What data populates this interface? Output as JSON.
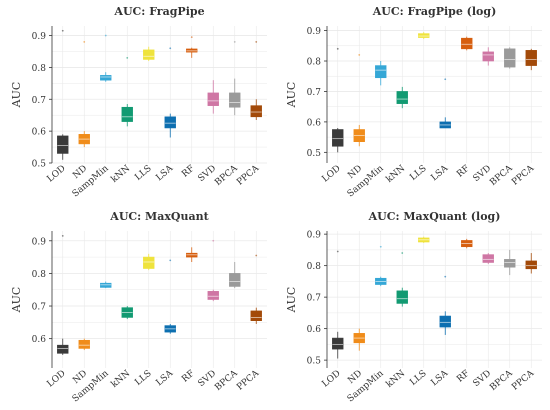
{
  "chart_data": [
    {
      "type": "box",
      "title": "AUC: FragPipe",
      "ylabel": "AUC",
      "xlabel": "",
      "ylim": [
        0.5,
        0.93
      ],
      "yticks": [
        0.5,
        0.6,
        0.7,
        0.8,
        0.9
      ],
      "grid": true,
      "categories": [
        "LOD",
        "ND",
        "SampMin",
        "kNN",
        "LLS",
        "LSA",
        "RF",
        "SVD",
        "BPCA",
        "PPCA"
      ],
      "boxes": [
        {
          "category": "LOD",
          "whisker_low": 0.51,
          "q1": 0.53,
          "median": 0.555,
          "q3": 0.585,
          "whisker_high": 0.59,
          "outliers": [
            0.915
          ]
        },
        {
          "category": "ND",
          "whisker_low": 0.55,
          "q1": 0.56,
          "median": 0.575,
          "q3": 0.59,
          "whisker_high": 0.6,
          "outliers": [
            0.88
          ]
        },
        {
          "category": "SampMin",
          "whisker_low": 0.755,
          "q1": 0.76,
          "median": 0.77,
          "q3": 0.775,
          "whisker_high": 0.785,
          "outliers": [
            0.9
          ]
        },
        {
          "category": "kNN",
          "whisker_low": 0.615,
          "q1": 0.63,
          "median": 0.645,
          "q3": 0.675,
          "whisker_high": 0.685,
          "outliers": [
            0.83
          ]
        },
        {
          "category": "LLS",
          "whisker_low": 0.82,
          "q1": 0.825,
          "median": 0.835,
          "q3": 0.855,
          "whisker_high": 0.865,
          "outliers": []
        },
        {
          "category": "LSA",
          "whisker_low": 0.58,
          "q1": 0.61,
          "median": 0.625,
          "q3": 0.645,
          "whisker_high": 0.655,
          "outliers": [
            0.86
          ]
        },
        {
          "category": "RF",
          "whisker_low": 0.83,
          "q1": 0.848,
          "median": 0.852,
          "q3": 0.858,
          "whisker_high": 0.862,
          "outliers": [
            0.895
          ]
        },
        {
          "category": "SVD",
          "whisker_low": 0.655,
          "q1": 0.68,
          "median": 0.695,
          "q3": 0.72,
          "whisker_high": 0.76,
          "outliers": []
        },
        {
          "category": "BPCA",
          "whisker_low": 0.65,
          "q1": 0.675,
          "median": 0.69,
          "q3": 0.72,
          "whisker_high": 0.765,
          "outliers": [
            0.88
          ]
        },
        {
          "category": "PPCA",
          "whisker_low": 0.635,
          "q1": 0.645,
          "median": 0.66,
          "q3": 0.68,
          "whisker_high": 0.7,
          "outliers": [
            0.88
          ]
        }
      ]
    },
    {
      "type": "box",
      "title": "AUC: FragPipe (log)",
      "ylabel": "AUC",
      "xlabel": "",
      "ylim": [
        0.465,
        0.915
      ],
      "yticks": [
        0.5,
        0.6,
        0.7,
        0.8,
        0.9
      ],
      "grid": true,
      "categories": [
        "LOD",
        "ND",
        "SampMin",
        "kNN",
        "LLS",
        "LSA",
        "RF",
        "SVD",
        "BPCA",
        "PPCA"
      ],
      "boxes": [
        {
          "category": "LOD",
          "whisker_low": 0.5,
          "q1": 0.52,
          "median": 0.545,
          "q3": 0.575,
          "whisker_high": 0.58,
          "outliers": [
            0.84
          ]
        },
        {
          "category": "ND",
          "whisker_low": 0.52,
          "q1": 0.535,
          "median": 0.555,
          "q3": 0.575,
          "whisker_high": 0.59,
          "outliers": [
            0.82
          ]
        },
        {
          "category": "SampMin",
          "whisker_low": 0.72,
          "q1": 0.745,
          "median": 0.77,
          "q3": 0.785,
          "whisker_high": 0.8,
          "outliers": []
        },
        {
          "category": "kNN",
          "whisker_low": 0.645,
          "q1": 0.66,
          "median": 0.675,
          "q3": 0.7,
          "whisker_high": 0.715,
          "outliers": []
        },
        {
          "category": "LLS",
          "whisker_low": 0.872,
          "q1": 0.877,
          "median": 0.882,
          "q3": 0.89,
          "whisker_high": 0.895,
          "outliers": []
        },
        {
          "category": "LSA",
          "whisker_low": 0.58,
          "q1": 0.58,
          "median": 0.59,
          "q3": 0.6,
          "whisker_high": 0.615,
          "outliers": [
            0.74
          ]
        },
        {
          "category": "RF",
          "whisker_low": 0.835,
          "q1": 0.84,
          "median": 0.855,
          "q3": 0.875,
          "whisker_high": 0.88,
          "outliers": []
        },
        {
          "category": "SVD",
          "whisker_low": 0.785,
          "q1": 0.8,
          "median": 0.82,
          "q3": 0.83,
          "whisker_high": 0.845,
          "outliers": []
        },
        {
          "category": "BPCA",
          "whisker_low": 0.775,
          "q1": 0.78,
          "median": 0.805,
          "q3": 0.84,
          "whisker_high": 0.845,
          "outliers": []
        },
        {
          "category": "PPCA",
          "whisker_low": 0.77,
          "q1": 0.785,
          "median": 0.805,
          "q3": 0.835,
          "whisker_high": 0.84,
          "outliers": []
        }
      ]
    },
    {
      "type": "box",
      "title": "AUC: MaxQuant",
      "ylabel": "AUC",
      "xlabel": "",
      "ylim": [
        0.51,
        0.93
      ],
      "yticks": [
        0.6,
        0.7,
        0.8,
        0.9
      ],
      "grid": true,
      "categories": [
        "LOD",
        "ND",
        "SampMin",
        "kNN",
        "LLS",
        "LSA",
        "RF",
        "SVD",
        "BPCA",
        "PPCA"
      ],
      "boxes": [
        {
          "category": "LOD",
          "whisker_low": 0.55,
          "q1": 0.555,
          "median": 0.57,
          "q3": 0.58,
          "whisker_high": 0.6,
          "outliers": [
            0.915
          ]
        },
        {
          "category": "ND",
          "whisker_low": 0.565,
          "q1": 0.57,
          "median": 0.58,
          "q3": 0.595,
          "whisker_high": 0.6,
          "outliers": []
        },
        {
          "category": "SampMin",
          "whisker_low": 0.755,
          "q1": 0.757,
          "median": 0.765,
          "q3": 0.77,
          "whisker_high": 0.775,
          "outliers": []
        },
        {
          "category": "kNN",
          "whisker_low": 0.66,
          "q1": 0.665,
          "median": 0.68,
          "q3": 0.695,
          "whisker_high": 0.7,
          "outliers": []
        },
        {
          "category": "LLS",
          "whisker_low": 0.81,
          "q1": 0.815,
          "median": 0.835,
          "q3": 0.85,
          "whisker_high": 0.86,
          "outliers": []
        },
        {
          "category": "LSA",
          "whisker_low": 0.615,
          "q1": 0.62,
          "median": 0.63,
          "q3": 0.64,
          "whisker_high": 0.645,
          "outliers": [
            0.84
          ]
        },
        {
          "category": "RF",
          "whisker_low": 0.835,
          "q1": 0.85,
          "median": 0.857,
          "q3": 0.862,
          "whisker_high": 0.88,
          "outliers": []
        },
        {
          "category": "SVD",
          "whisker_low": 0.715,
          "q1": 0.72,
          "median": 0.73,
          "q3": 0.745,
          "whisker_high": 0.75,
          "outliers": [
            0.9
          ]
        },
        {
          "category": "BPCA",
          "whisker_low": 0.755,
          "q1": 0.76,
          "median": 0.775,
          "q3": 0.8,
          "whisker_high": 0.835,
          "outliers": []
        },
        {
          "category": "PPCA",
          "whisker_low": 0.645,
          "q1": 0.655,
          "median": 0.665,
          "q3": 0.685,
          "whisker_high": 0.695,
          "outliers": [
            0.855
          ]
        }
      ]
    },
    {
      "type": "box",
      "title": "AUC: MaxQuant (log)",
      "ylabel": "AUC",
      "xlabel": "",
      "ylim": [
        0.475,
        0.91
      ],
      "yticks": [
        0.5,
        0.6,
        0.7,
        0.8,
        0.9
      ],
      "grid": true,
      "categories": [
        "LOD",
        "ND",
        "SampMin",
        "kNN",
        "LLS",
        "LSA",
        "RF",
        "SVD",
        "BPCA",
        "PPCA"
      ],
      "boxes": [
        {
          "category": "LOD",
          "whisker_low": 0.505,
          "q1": 0.535,
          "median": 0.55,
          "q3": 0.57,
          "whisker_high": 0.59,
          "outliers": [
            0.845
          ]
        },
        {
          "category": "ND",
          "whisker_low": 0.53,
          "q1": 0.555,
          "median": 0.57,
          "q3": 0.585,
          "whisker_high": 0.6,
          "outliers": []
        },
        {
          "category": "SampMin",
          "whisker_low": 0.735,
          "q1": 0.74,
          "median": 0.75,
          "q3": 0.76,
          "whisker_high": 0.765,
          "outliers": [
            0.86
          ]
        },
        {
          "category": "kNN",
          "whisker_low": 0.67,
          "q1": 0.68,
          "median": 0.695,
          "q3": 0.72,
          "whisker_high": 0.73,
          "outliers": [
            0.84
          ]
        },
        {
          "category": "LLS",
          "whisker_low": 0.872,
          "q1": 0.875,
          "median": 0.882,
          "q3": 0.888,
          "whisker_high": 0.892,
          "outliers": []
        },
        {
          "category": "LSA",
          "whisker_low": 0.58,
          "q1": 0.605,
          "median": 0.62,
          "q3": 0.64,
          "whisker_high": 0.655,
          "outliers": [
            0.765
          ]
        },
        {
          "category": "RF",
          "whisker_low": 0.855,
          "q1": 0.86,
          "median": 0.87,
          "q3": 0.88,
          "whisker_high": 0.885,
          "outliers": []
        },
        {
          "category": "SVD",
          "whisker_low": 0.805,
          "q1": 0.81,
          "median": 0.82,
          "q3": 0.835,
          "whisker_high": 0.84,
          "outliers": []
        },
        {
          "category": "BPCA",
          "whisker_low": 0.77,
          "q1": 0.795,
          "median": 0.81,
          "q3": 0.82,
          "whisker_high": 0.85,
          "outliers": []
        },
        {
          "category": "PPCA",
          "whisker_low": 0.775,
          "q1": 0.79,
          "median": 0.8,
          "q3": 0.815,
          "whisker_high": 0.84,
          "outliers": []
        }
      ]
    }
  ],
  "colors": {
    "LOD": "#3a3a3a",
    "ND": "#f08c1a",
    "SampMin": "#35a7d6",
    "kNN": "#129a72",
    "LLS": "#efe33c",
    "LSA": "#0d6fb0",
    "RF": "#d65e0e",
    "SVD": "#cf76a4",
    "BPCA": "#9a9a9a",
    "PPCA": "#a34a09",
    "grid": "#e9e9e9",
    "axis": "#333333"
  }
}
